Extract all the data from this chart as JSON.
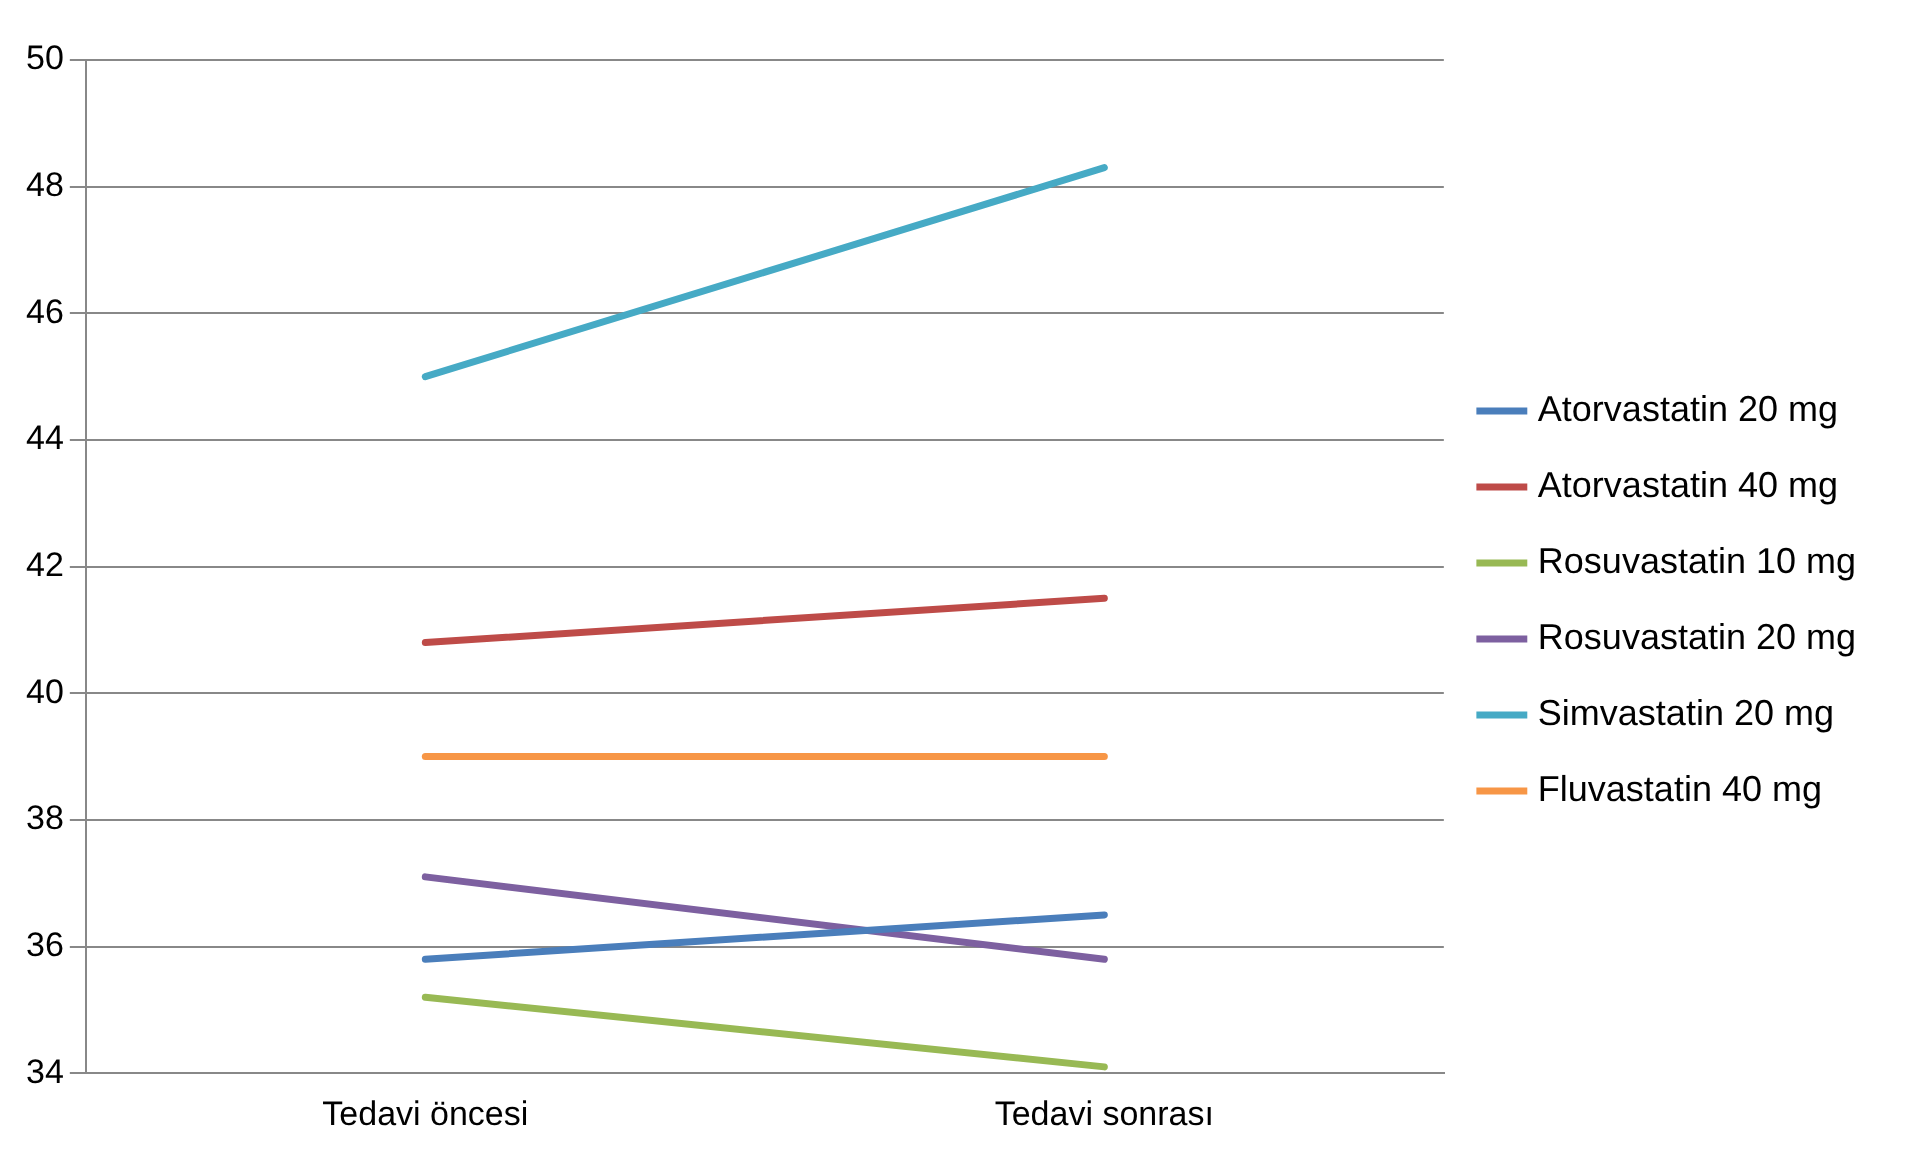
{
  "chart_data": {
    "type": "line",
    "categories": [
      "Tedavi öncesi",
      "Tedavi sonrası"
    ],
    "series": [
      {
        "name": "Atorvastatin 20 mg",
        "color": "#4a7ebb",
        "values": [
          35.8,
          36.5
        ]
      },
      {
        "name": "Atorvastatin 40 mg",
        "color": "#be4b48",
        "values": [
          40.8,
          41.5
        ]
      },
      {
        "name": "Rosuvastatin 10 mg",
        "color": "#98b954",
        "values": [
          35.2,
          34.1
        ]
      },
      {
        "name": "Rosuvastatin 20 mg",
        "color": "#7d60a0",
        "values": [
          37.1,
          35.8
        ]
      },
      {
        "name": "Simvastatin 20 mg",
        "color": "#46aac5",
        "values": [
          45.0,
          48.3
        ]
      },
      {
        "name": "Fluvastatin 40 mg",
        "color": "#f79646",
        "values": [
          39.0,
          39.0
        ]
      }
    ],
    "ylim": [
      34,
      50
    ],
    "yticks": [
      34,
      36,
      38,
      40,
      42,
      44,
      46,
      48,
      50
    ],
    "grid": "y",
    "legend": "right",
    "marker": "none",
    "line_style": "solid"
  }
}
